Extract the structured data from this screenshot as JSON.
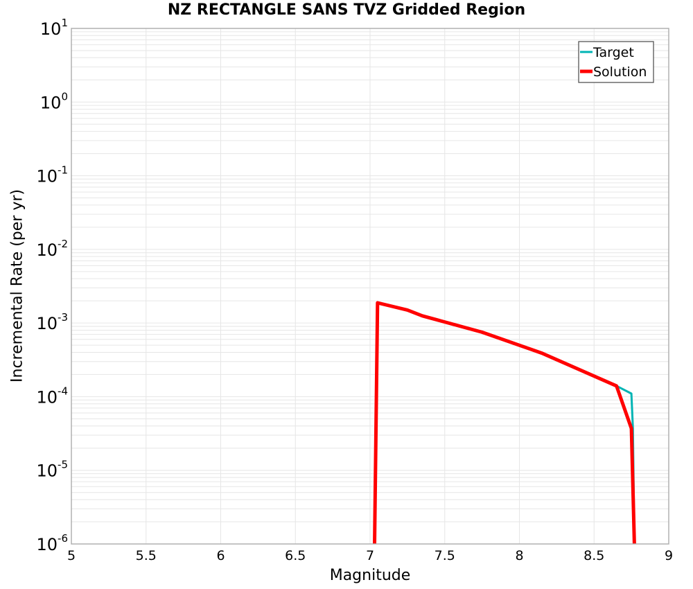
{
  "chart_data": {
    "type": "line",
    "title": "NZ RECTANGLE SANS TVZ Gridded Region",
    "xlabel": "Magnitude",
    "ylabel": "Incremental Rate (per yr)",
    "xlim": [
      5,
      9
    ],
    "ylim": [
      1e-06,
      10
    ],
    "yscale": "log",
    "grid": true,
    "legend_position": "upper right",
    "x_ticks": [
      "5",
      "5.5",
      "6",
      "6.5",
      "7",
      "7.5",
      "8",
      "8.5",
      "9"
    ],
    "y_ticks": [
      {
        "base": "10",
        "exp": "1"
      },
      {
        "base": "10",
        "exp": "0"
      },
      {
        "base": "10",
        "exp": "-1"
      },
      {
        "base": "10",
        "exp": "-2"
      },
      {
        "base": "10",
        "exp": "-3"
      },
      {
        "base": "10",
        "exp": "-4"
      },
      {
        "base": "10",
        "exp": "-5"
      },
      {
        "base": "10",
        "exp": "-6"
      }
    ],
    "series": [
      {
        "name": "Target",
        "color": "#00b4b4",
        "x": [
          7.03,
          7.05,
          7.25,
          7.35,
          7.45,
          7.75,
          8.15,
          8.65,
          8.75,
          8.76,
          8.77
        ],
        "values": [
          1e-06,
          0.00188,
          0.0015,
          0.00125,
          0.0011,
          0.00075,
          0.00039,
          0.00014,
          0.00011,
          3.7e-05,
          1e-06
        ]
      },
      {
        "name": "Solution",
        "color": "#ff0000",
        "x": [
          7.03,
          7.05,
          7.25,
          7.35,
          7.45,
          7.75,
          8.15,
          8.65,
          8.75,
          8.77
        ],
        "values": [
          1e-06,
          0.00188,
          0.0015,
          0.00125,
          0.0011,
          0.00075,
          0.00039,
          0.00014,
          3.7e-05,
          1e-06
        ]
      }
    ]
  },
  "legend": {
    "items": [
      {
        "label": "Target",
        "color": "#00b4b4"
      },
      {
        "label": "Solution",
        "color": "#ff0000"
      }
    ]
  }
}
